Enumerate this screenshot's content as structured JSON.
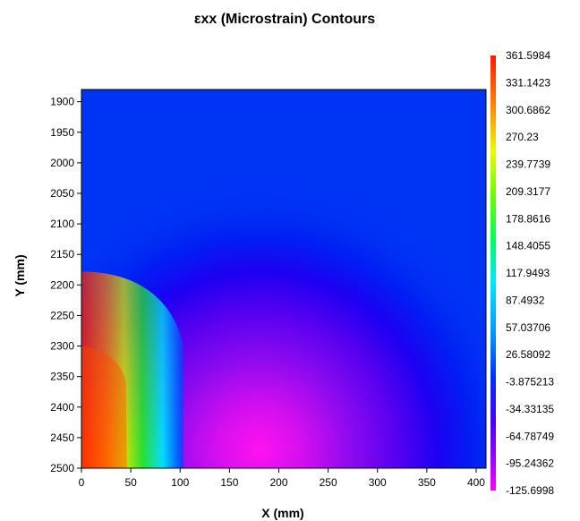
{
  "chart_data": {
    "type": "heatmap",
    "title": "εxx (Microstrain) Contours",
    "xlabel": "X (mm)",
    "ylabel": "Y (mm)",
    "xlim": [
      0,
      410
    ],
    "ylim": [
      2500,
      1880
    ],
    "x_ticks": [
      "0",
      "50",
      "100",
      "150",
      "200",
      "250",
      "300",
      "350",
      "400"
    ],
    "y_ticks": [
      "1900",
      "1950",
      "2000",
      "2050",
      "2100",
      "2150",
      "2200",
      "2250",
      "2300",
      "2350",
      "2400",
      "2450",
      "2500"
    ],
    "colorbar": {
      "min": -125.6998,
      "max": 361.5984,
      "labels": [
        "361.5984",
        "331.1423",
        "300.6862",
        "270.23",
        "239.7739",
        "209.3177",
        "178.8616",
        "148.4055",
        "117.9493",
        "87.4932",
        "57.03706",
        "26.58092",
        "-3.875213",
        "-34.33135",
        "-64.78749",
        "-95.24362",
        "-125.6998"
      ]
    }
  }
}
